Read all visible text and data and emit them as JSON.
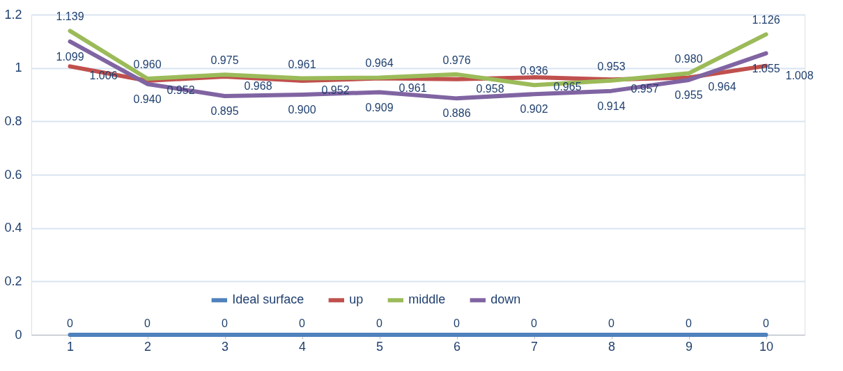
{
  "chart_data": {
    "type": "line",
    "categories": [
      "1",
      "2",
      "3",
      "4",
      "5",
      "6",
      "7",
      "8",
      "9",
      "10"
    ],
    "series": [
      {
        "name": "Ideal surface",
        "color": "#4f81bd",
        "values": [
          0,
          0,
          0,
          0,
          0,
          0,
          0,
          0,
          0,
          0
        ],
        "value_labels": [
          "0",
          "0",
          "0",
          "0",
          "0",
          "0",
          "0",
          "0",
          "0",
          "0"
        ]
      },
      {
        "name": "up",
        "color": "#c0504d",
        "values": [
          1.006,
          0.952,
          0.968,
          0.952,
          0.961,
          0.958,
          0.965,
          0.957,
          0.964,
          1.008
        ],
        "value_labels": [
          "1.006",
          "0.952",
          "0.968",
          "0.952",
          "0.961",
          "0.958",
          "0.965",
          "0.957",
          "0.964",
          "1.008"
        ]
      },
      {
        "name": "middle",
        "color": "#9bbb59",
        "values": [
          1.139,
          0.96,
          0.975,
          0.961,
          0.964,
          0.976,
          0.936,
          0.953,
          0.98,
          1.126
        ],
        "value_labels": [
          "1.139",
          "0.960",
          "0.975",
          "0.961",
          "0.964",
          "0.976",
          "0.936",
          "0.953",
          "0.980",
          "1.126"
        ]
      },
      {
        "name": "down",
        "color": "#8064a2",
        "values": [
          1.099,
          0.94,
          0.895,
          0.9,
          0.909,
          0.886,
          0.902,
          0.914,
          0.955,
          1.055
        ],
        "value_labels": [
          "1.099",
          "0.940",
          "0.895",
          "0.900",
          "0.909",
          "0.886",
          "0.902",
          "0.914",
          "0.955",
          "1.055"
        ]
      }
    ],
    "ylim": [
      0,
      1.2
    ],
    "yticks": [
      0,
      0.2,
      0.4,
      0.6,
      0.8,
      1,
      1.2
    ],
    "grid": "y",
    "legend": "bottom"
  }
}
